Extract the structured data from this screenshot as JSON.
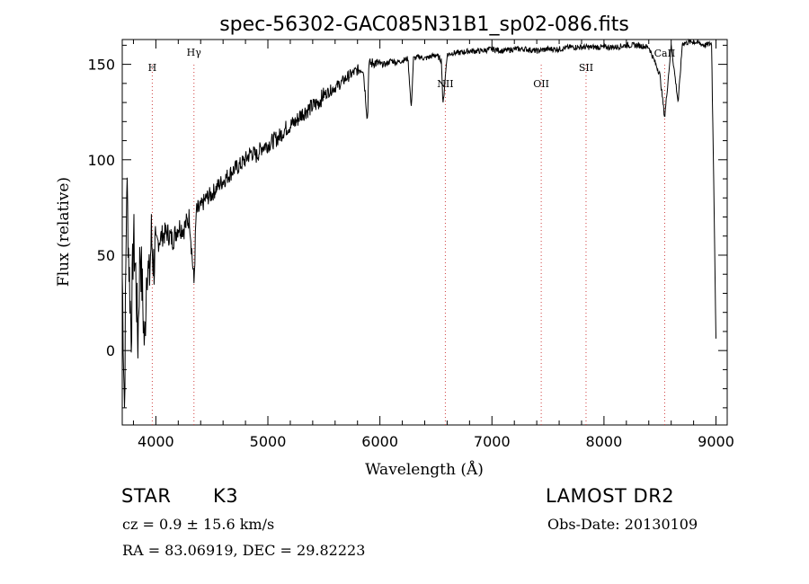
{
  "footer": {
    "class": "STAR",
    "subclass": "K3",
    "cz": "cz = 0.9 ± 15.6 km/s",
    "survey": "LAMOST DR2",
    "obs_date": "Obs-Date: 20130109",
    "radec": "RA =  83.06919, DEC =  29.82223"
  },
  "chart_data": {
    "type": "line",
    "title": "spec-56302-GAC085N31B1_sp02-086.fits",
    "xlabel": "Wavelength (Å)",
    "ylabel": "Flux (relative)",
    "xlim": [
      3700,
      9100
    ],
    "ylim": [
      -39,
      163
    ],
    "xticks": [
      4000,
      5000,
      6000,
      7000,
      8000,
      9000
    ],
    "yticks": [
      0,
      50,
      100,
      150
    ],
    "grid": false,
    "line_color": "#000000",
    "marker_color": "#d04040",
    "series": [
      {
        "values": {
          "x": [
            3700,
            3720,
            3740,
            3760,
            3780,
            3800,
            3820,
            3840,
            3860,
            3880,
            3900,
            3920,
            3940,
            3960,
            3980,
            4000,
            4050,
            4100,
            4150,
            4200,
            4250,
            4300,
            4340,
            4360,
            4400,
            4450,
            4500,
            4550,
            4600,
            4650,
            4700,
            4750,
            4800,
            4850,
            4900,
            4950,
            5000,
            5050,
            5100,
            5150,
            5200,
            5250,
            5300,
            5350,
            5400,
            5450,
            5500,
            5550,
            5600,
            5650,
            5700,
            5750,
            5800,
            5850,
            5890,
            5900,
            5950,
            6000,
            6050,
            6100,
            6150,
            6200,
            6250,
            6280,
            6300,
            6350,
            6400,
            6450,
            6500,
            6550,
            6563,
            6600,
            6650,
            6700,
            6800,
            6900,
            7000,
            7100,
            7200,
            7300,
            7400,
            7500,
            7600,
            7700,
            7800,
            7900,
            8000,
            8100,
            8200,
            8300,
            8400,
            8498,
            8542,
            8600,
            8662,
            8700,
            8800,
            8900,
            8960,
            8980,
            9000
          ],
          "y": [
            40,
            -30,
            90,
            45,
            10,
            60,
            40,
            5,
            55,
            30,
            0,
            50,
            35,
            60,
            45,
            55,
            60,
            62,
            58,
            65,
            64,
            70,
            35,
            72,
            75,
            80,
            82,
            86,
            89,
            92,
            95,
            97,
            100,
            104,
            102,
            107,
            108,
            110,
            112,
            116,
            118,
            120,
            124,
            126,
            128,
            130,
            134,
            136,
            138,
            140,
            143,
            145,
            147,
            148,
            120,
            150,
            151,
            150,
            150,
            152,
            151,
            152,
            153,
            127,
            153,
            154,
            153,
            154,
            155,
            152,
            128,
            155,
            156,
            156,
            157,
            157,
            158,
            157,
            158,
            158,
            157,
            158,
            158,
            159,
            159,
            159,
            159,
            159,
            160,
            160,
            159,
            145,
            122,
            160,
            130,
            161,
            162,
            160,
            161,
            90,
            5
          ]
        }
      }
    ],
    "line_markers": [
      {
        "label": "H",
        "x": 3968
      },
      {
        "label": "Hγ",
        "x": 4340
      },
      {
        "label": "NII",
        "x": 6584
      },
      {
        "label": "OII",
        "x": 7440
      },
      {
        "label": "SII",
        "x": 7840
      },
      {
        "label": "CaII",
        "x": 8542
      }
    ]
  }
}
